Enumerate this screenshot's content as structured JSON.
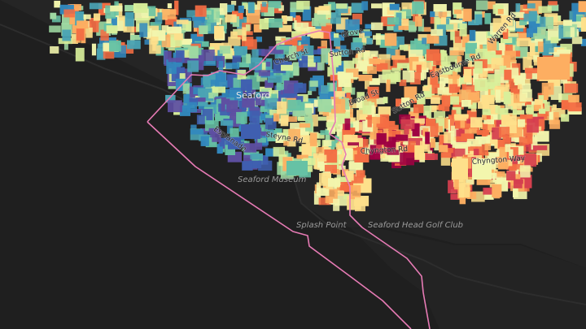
{
  "map": {
    "colors": {
      "sea": "#1f1f1f",
      "land": "#262626",
      "boundary": "#e77bb5",
      "palette": [
        "#5e4fa2",
        "#3f5fb0",
        "#3288bd",
        "#4aa3b4",
        "#66c2a5",
        "#9ed9a2",
        "#d8ef9a",
        "#f3f6ad",
        "#fee08b",
        "#fdae61",
        "#f46d43",
        "#d53e4f",
        "#9e0142"
      ]
    },
    "places": [
      {
        "id": "seaford",
        "text": "Seaford"
      },
      {
        "id": "museum",
        "text": "Seaford Museum"
      },
      {
        "id": "splash",
        "text": "Splash Point"
      },
      {
        "id": "golf",
        "text": "Seaford Head Golf Club"
      }
    ],
    "streets": [
      {
        "id": "esplanade",
        "text": "Esplanade"
      },
      {
        "id": "steyne",
        "text": "Steyne Rd"
      },
      {
        "id": "chyngton-rd",
        "text": "Chyngton Rd"
      },
      {
        "id": "chyngton-way",
        "text": "Chyngton Way"
      },
      {
        "id": "sutton",
        "text": "Sutton Rd"
      },
      {
        "id": "sutton2",
        "text": "Sutton Rd"
      },
      {
        "id": "broad",
        "text": "Broad St"
      },
      {
        "id": "eastbourne",
        "text": "Eastbourne Rd"
      },
      {
        "id": "grove",
        "text": "Grove"
      },
      {
        "id": "warren",
        "text": "Warren Rd"
      },
      {
        "id": "church",
        "text": "Church St"
      }
    ]
  }
}
